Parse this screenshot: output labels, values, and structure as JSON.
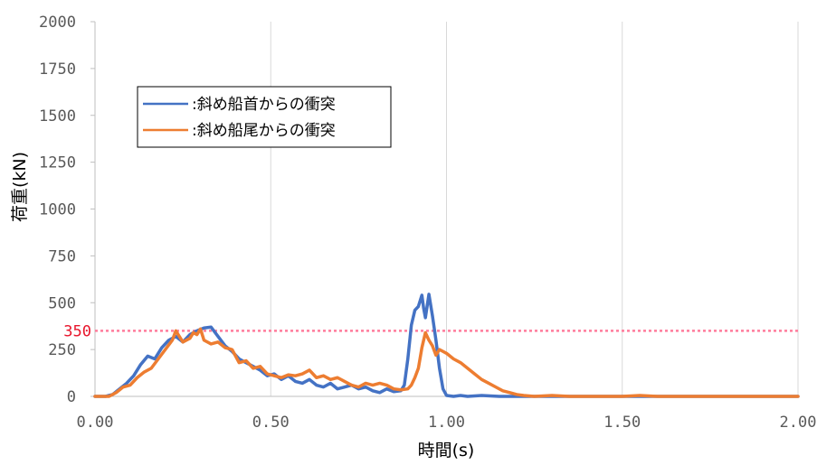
{
  "chart_data": {
    "type": "line",
    "xlabel": "時間(s)",
    "ylabel": "荷重(kN)",
    "xlim": [
      0,
      2.0
    ],
    "ylim": [
      0,
      2000
    ],
    "x_ticks": [
      "0.00",
      "0.50",
      "1.00",
      "1.50",
      "2.00"
    ],
    "x_tick_values": [
      0,
      0.5,
      1.0,
      1.5,
      2.0
    ],
    "y_ticks": [
      "0",
      "250",
      "500",
      "750",
      "1000",
      "1250",
      "1500",
      "1750",
      "2000"
    ],
    "y_tick_values": [
      0,
      250,
      500,
      750,
      1000,
      1250,
      1500,
      1750,
      2000
    ],
    "grid": "vertical",
    "legend_position": "top-left",
    "reference_line": {
      "value": 350,
      "label": "350",
      "color": "#ff7c9c",
      "label_color": "#e8162c"
    },
    "series": [
      {
        "name": ":斜め船首からの衝突",
        "color": "#4472c4",
        "points": [
          [
            0,
            0
          ],
          [
            0.03,
            0
          ],
          [
            0.05,
            10
          ],
          [
            0.07,
            40
          ],
          [
            0.09,
            70
          ],
          [
            0.11,
            110
          ],
          [
            0.13,
            170
          ],
          [
            0.15,
            215
          ],
          [
            0.17,
            200
          ],
          [
            0.19,
            260
          ],
          [
            0.21,
            300
          ],
          [
            0.23,
            320
          ],
          [
            0.25,
            290
          ],
          [
            0.27,
            330
          ],
          [
            0.29,
            350
          ],
          [
            0.31,
            365
          ],
          [
            0.33,
            370
          ],
          [
            0.35,
            320
          ],
          [
            0.37,
            270
          ],
          [
            0.39,
            240
          ],
          [
            0.41,
            200
          ],
          [
            0.43,
            180
          ],
          [
            0.45,
            160
          ],
          [
            0.47,
            140
          ],
          [
            0.49,
            110
          ],
          [
            0.51,
            120
          ],
          [
            0.53,
            90
          ],
          [
            0.55,
            110
          ],
          [
            0.57,
            80
          ],
          [
            0.59,
            70
          ],
          [
            0.61,
            90
          ],
          [
            0.63,
            60
          ],
          [
            0.65,
            50
          ],
          [
            0.67,
            70
          ],
          [
            0.69,
            40
          ],
          [
            0.71,
            50
          ],
          [
            0.73,
            60
          ],
          [
            0.75,
            40
          ],
          [
            0.77,
            50
          ],
          [
            0.79,
            30
          ],
          [
            0.81,
            20
          ],
          [
            0.83,
            40
          ],
          [
            0.85,
            25
          ],
          [
            0.87,
            30
          ],
          [
            0.88,
            60
          ],
          [
            0.89,
            200
          ],
          [
            0.9,
            380
          ],
          [
            0.91,
            460
          ],
          [
            0.92,
            480
          ],
          [
            0.93,
            540
          ],
          [
            0.935,
            470
          ],
          [
            0.94,
            420
          ],
          [
            0.95,
            545
          ],
          [
            0.96,
            430
          ],
          [
            0.97,
            300
          ],
          [
            0.98,
            150
          ],
          [
            0.99,
            40
          ],
          [
            1.0,
            5
          ],
          [
            1.02,
            0
          ],
          [
            1.04,
            5
          ],
          [
            1.06,
            0
          ],
          [
            1.1,
            5
          ],
          [
            1.15,
            0
          ],
          [
            1.2,
            0
          ],
          [
            1.3,
            0
          ],
          [
            2.0,
            0
          ]
        ]
      },
      {
        "name": ":斜め船尾からの衝突",
        "color": "#ed7d31",
        "points": [
          [
            0,
            0
          ],
          [
            0.04,
            0
          ],
          [
            0.06,
            20
          ],
          [
            0.08,
            50
          ],
          [
            0.1,
            60
          ],
          [
            0.12,
            100
          ],
          [
            0.14,
            130
          ],
          [
            0.16,
            150
          ],
          [
            0.18,
            200
          ],
          [
            0.2,
            250
          ],
          [
            0.22,
            300
          ],
          [
            0.23,
            350
          ],
          [
            0.25,
            290
          ],
          [
            0.27,
            310
          ],
          [
            0.28,
            340
          ],
          [
            0.29,
            330
          ],
          [
            0.3,
            360
          ],
          [
            0.31,
            300
          ],
          [
            0.33,
            280
          ],
          [
            0.35,
            290
          ],
          [
            0.37,
            260
          ],
          [
            0.39,
            250
          ],
          [
            0.41,
            180
          ],
          [
            0.43,
            190
          ],
          [
            0.45,
            150
          ],
          [
            0.47,
            160
          ],
          [
            0.49,
            120
          ],
          [
            0.51,
            110
          ],
          [
            0.53,
            100
          ],
          [
            0.55,
            115
          ],
          [
            0.57,
            110
          ],
          [
            0.59,
            120
          ],
          [
            0.61,
            140
          ],
          [
            0.63,
            100
          ],
          [
            0.65,
            110
          ],
          [
            0.67,
            90
          ],
          [
            0.69,
            100
          ],
          [
            0.71,
            80
          ],
          [
            0.73,
            60
          ],
          [
            0.75,
            50
          ],
          [
            0.77,
            70
          ],
          [
            0.79,
            60
          ],
          [
            0.81,
            70
          ],
          [
            0.83,
            60
          ],
          [
            0.85,
            40
          ],
          [
            0.87,
            35
          ],
          [
            0.89,
            40
          ],
          [
            0.9,
            60
          ],
          [
            0.91,
            100
          ],
          [
            0.92,
            150
          ],
          [
            0.93,
            260
          ],
          [
            0.94,
            340
          ],
          [
            0.95,
            300
          ],
          [
            0.96,
            270
          ],
          [
            0.97,
            220
          ],
          [
            0.98,
            250
          ],
          [
            1.0,
            230
          ],
          [
            1.02,
            200
          ],
          [
            1.04,
            180
          ],
          [
            1.06,
            150
          ],
          [
            1.08,
            120
          ],
          [
            1.1,
            90
          ],
          [
            1.12,
            70
          ],
          [
            1.14,
            50
          ],
          [
            1.16,
            30
          ],
          [
            1.18,
            20
          ],
          [
            1.2,
            10
          ],
          [
            1.22,
            5
          ],
          [
            1.25,
            0
          ],
          [
            1.3,
            5
          ],
          [
            1.35,
            0
          ],
          [
            1.5,
            0
          ],
          [
            1.55,
            5
          ],
          [
            1.6,
            0
          ],
          [
            2.0,
            0
          ]
        ]
      }
    ]
  }
}
